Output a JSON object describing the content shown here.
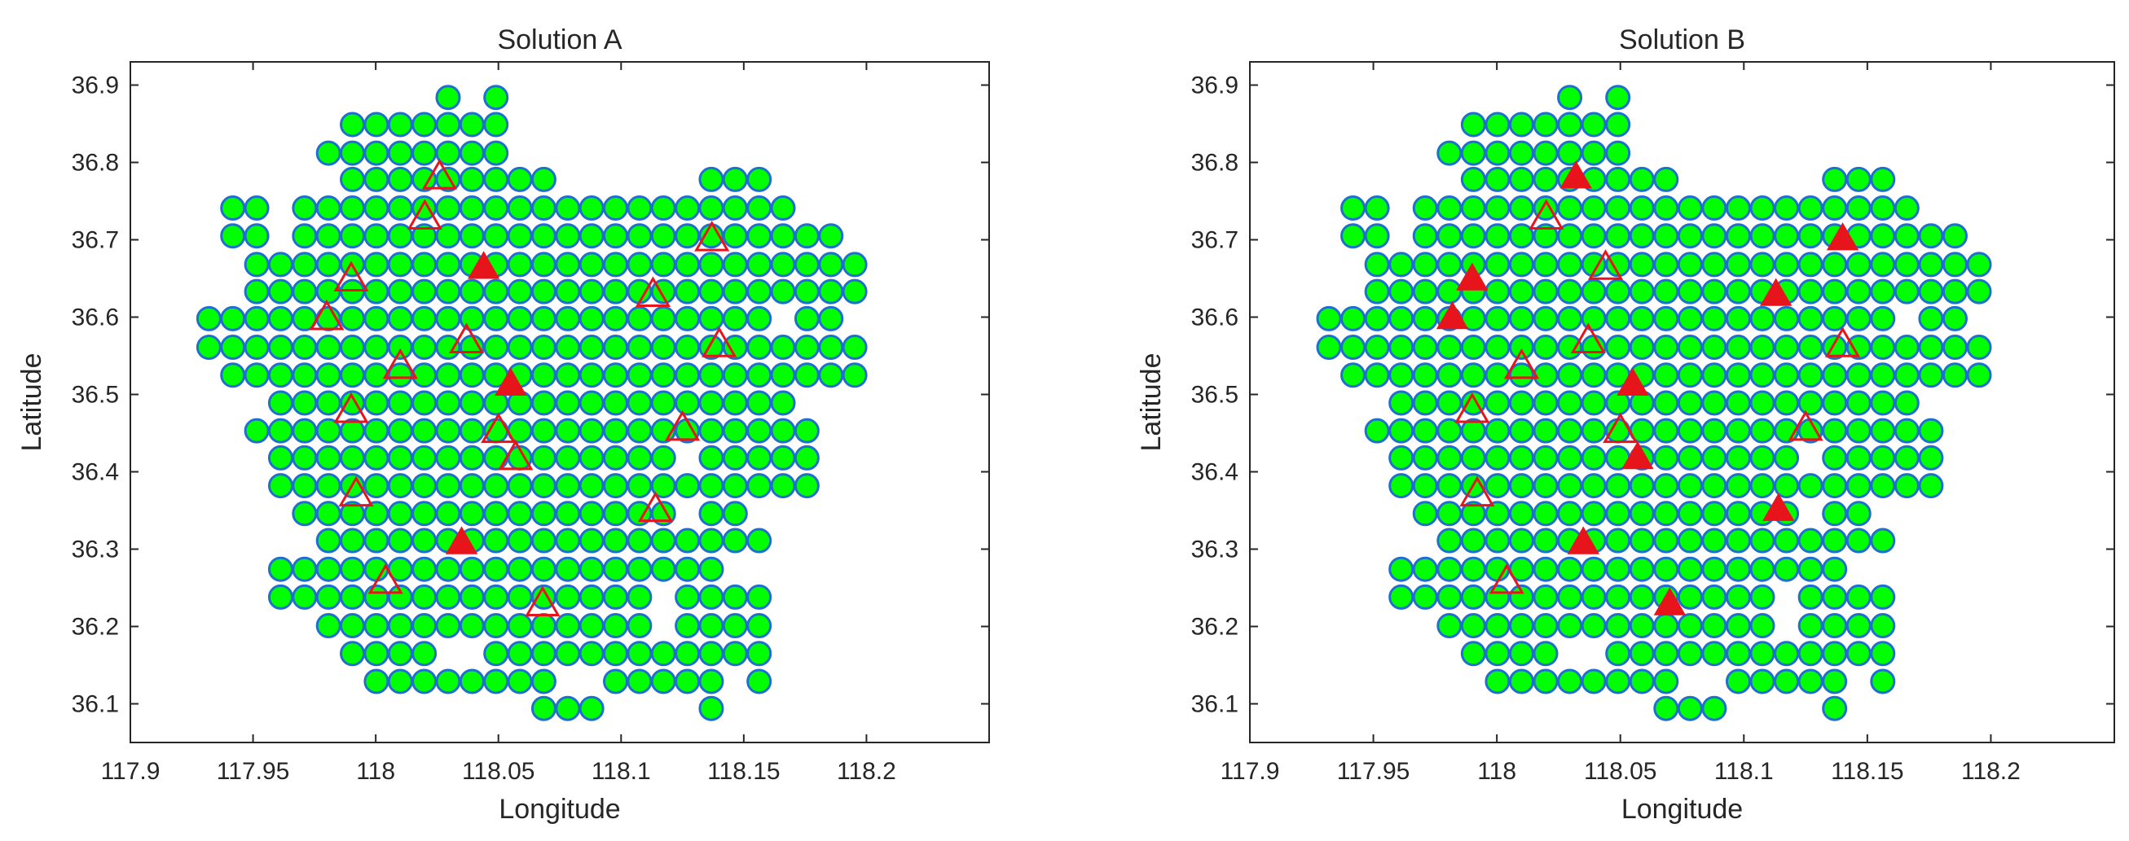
{
  "colors": {
    "node_fill": "#00ff00",
    "node_edge": "#1f6fd1",
    "marker_red": "#e8141c",
    "axis": "#262626"
  },
  "chart_data": [
    {
      "type": "scatter",
      "title": "Solution A",
      "xlabel": "Longitude",
      "ylabel": "Latitude",
      "xlim": [
        117.9,
        118.25
      ],
      "ylim": [
        36.05,
        36.93
      ],
      "xticks": [
        "117.9",
        "117.95",
        "118",
        "118.05",
        "118.1",
        "118.15",
        "118.2"
      ],
      "yticks": [
        "36.1",
        "36.2",
        "36.3",
        "36.4",
        "36.5",
        "36.6",
        "36.7",
        "36.8",
        "36.9"
      ],
      "grid": false,
      "legend": "none",
      "filled_triangles": [
        [
          118.044,
          36.663
        ],
        [
          118.055,
          36.512
        ],
        [
          118.035,
          36.307
        ]
      ],
      "open_triangles": [
        [
          118.026,
          36.78
        ],
        [
          118.02,
          36.728
        ],
        [
          118.137,
          36.7
        ],
        [
          117.99,
          36.648
        ],
        [
          118.113,
          36.628
        ],
        [
          117.98,
          36.598
        ],
        [
          118.037,
          36.568
        ],
        [
          118.14,
          36.563
        ],
        [
          118.01,
          36.535
        ],
        [
          117.99,
          36.478
        ],
        [
          118.125,
          36.455
        ],
        [
          118.05,
          36.452
        ],
        [
          118.057,
          36.417
        ],
        [
          117.992,
          36.37
        ],
        [
          118.114,
          36.35
        ],
        [
          118.004,
          36.257
        ],
        [
          118.068,
          36.228
        ]
      ]
    },
    {
      "type": "scatter",
      "title": "Solution B",
      "xlabel": "Longitude",
      "ylabel": "Latitude",
      "xlim": [
        117.9,
        118.25
      ],
      "ylim": [
        36.05,
        36.93
      ],
      "xticks": [
        "117.9",
        "117.95",
        "118",
        "118.05",
        "118.1",
        "118.15",
        "118.2"
      ],
      "yticks": [
        "36.1",
        "36.2",
        "36.3",
        "36.4",
        "36.5",
        "36.6",
        "36.7",
        "36.8",
        "36.9"
      ],
      "grid": false,
      "legend": "none",
      "filled_triangles": [
        [
          118.032,
          36.78
        ],
        [
          118.14,
          36.7
        ],
        [
          117.99,
          36.648
        ],
        [
          118.113,
          36.628
        ],
        [
          117.982,
          36.598
        ],
        [
          118.055,
          36.512
        ],
        [
          118.057,
          36.417
        ],
        [
          118.114,
          36.35
        ],
        [
          118.035,
          36.307
        ],
        [
          118.07,
          36.228
        ]
      ],
      "open_triangles": [
        [
          118.02,
          36.728
        ],
        [
          118.044,
          36.663
        ],
        [
          118.037,
          36.568
        ],
        [
          118.14,
          36.563
        ],
        [
          118.01,
          36.535
        ],
        [
          117.99,
          36.478
        ],
        [
          118.125,
          36.455
        ],
        [
          118.05,
          36.452
        ],
        [
          117.992,
          36.37
        ],
        [
          118.004,
          36.257
        ]
      ]
    }
  ],
  "grid_points": {
    "x_start": 117.932,
    "x_step": 0.00975,
    "rows": [
      {
        "lat": 36.884,
        "idx": [
          10,
          12
        ]
      },
      {
        "lat": 36.849,
        "idx": [
          [
            6,
            12
          ]
        ]
      },
      {
        "lat": 36.812,
        "idx": [
          [
            5,
            12
          ]
        ]
      },
      {
        "lat": 36.778,
        "idx": [
          [
            6,
            14
          ],
          [
            21,
            23
          ]
        ]
      },
      {
        "lat": 36.741,
        "idx": [
          1,
          2,
          [
            4,
            24
          ]
        ]
      },
      {
        "lat": 36.705,
        "idx": [
          1,
          2,
          [
            4,
            26
          ]
        ]
      },
      {
        "lat": 36.668,
        "idx": [
          [
            2,
            27
          ]
        ]
      },
      {
        "lat": 36.633,
        "idx": [
          [
            2,
            27
          ]
        ]
      },
      {
        "lat": 36.598,
        "idx": [
          [
            0,
            23
          ],
          25,
          26
        ]
      },
      {
        "lat": 36.561,
        "idx": [
          [
            0,
            27
          ]
        ]
      },
      {
        "lat": 36.525,
        "idx": [
          [
            1,
            27
          ]
        ]
      },
      {
        "lat": 36.489,
        "idx": [
          [
            3,
            24
          ]
        ]
      },
      {
        "lat": 36.453,
        "idx": [
          [
            2,
            25
          ]
        ]
      },
      {
        "lat": 36.418,
        "idx": [
          [
            3,
            19
          ],
          [
            21,
            25
          ]
        ]
      },
      {
        "lat": 36.382,
        "idx": [
          [
            3,
            25
          ]
        ]
      },
      {
        "lat": 36.346,
        "idx": [
          [
            4,
            19
          ],
          21,
          22
        ]
      },
      {
        "lat": 36.311,
        "idx": [
          [
            5,
            23
          ]
        ]
      },
      {
        "lat": 36.274,
        "idx": [
          [
            3,
            21
          ]
        ]
      },
      {
        "lat": 36.238,
        "idx": [
          [
            3,
            18
          ],
          [
            20,
            23
          ]
        ]
      },
      {
        "lat": 36.201,
        "idx": [
          [
            5,
            18
          ],
          [
            20,
            23
          ]
        ]
      },
      {
        "lat": 36.165,
        "idx": [
          [
            6,
            9
          ],
          [
            12,
            23
          ]
        ]
      },
      {
        "lat": 36.129,
        "idx": [
          [
            7,
            14
          ],
          [
            17,
            21
          ],
          23
        ]
      },
      {
        "lat": 36.094,
        "idx": [
          14,
          15,
          16,
          21
        ]
      }
    ]
  }
}
